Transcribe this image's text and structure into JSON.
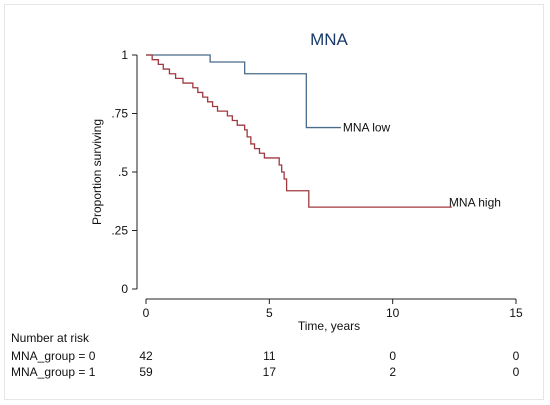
{
  "chart_data": {
    "type": "line",
    "subtype": "kaplan-meier",
    "title": "MNA",
    "xlabel": "Time, years",
    "ylabel": "Proportion surviving",
    "xlim": [
      0,
      15
    ],
    "ylim": [
      0,
      1
    ],
    "x_ticks": [
      0,
      5,
      10,
      15
    ],
    "x_tick_labels": [
      "0",
      "5",
      "10",
      "15"
    ],
    "y_ticks": [
      0,
      0.25,
      0.5,
      0.75,
      1
    ],
    "y_tick_labels": [
      "0",
      ".25",
      ".5",
      ".75",
      "1"
    ],
    "grid": false,
    "series": [
      {
        "name": "MNA low",
        "color": "#4a6b8a",
        "steps": [
          [
            0,
            1.0
          ],
          [
            2.6,
            0.97
          ],
          [
            4.0,
            0.92
          ],
          [
            6.5,
            0.69
          ]
        ],
        "end_x": 7.9
      },
      {
        "name": "MNA high",
        "color": "#a0393f",
        "steps": [
          [
            0,
            1.0
          ],
          [
            0.25,
            0.98
          ],
          [
            0.5,
            0.96
          ],
          [
            0.7,
            0.94
          ],
          [
            0.95,
            0.92
          ],
          [
            1.2,
            0.9
          ],
          [
            1.5,
            0.88
          ],
          [
            1.9,
            0.86
          ],
          [
            2.1,
            0.84
          ],
          [
            2.3,
            0.82
          ],
          [
            2.5,
            0.8
          ],
          [
            2.7,
            0.78
          ],
          [
            2.9,
            0.76
          ],
          [
            3.3,
            0.74
          ],
          [
            3.5,
            0.72
          ],
          [
            3.7,
            0.7
          ],
          [
            4.0,
            0.68
          ],
          [
            4.1,
            0.65
          ],
          [
            4.25,
            0.62
          ],
          [
            4.4,
            0.6
          ],
          [
            4.6,
            0.58
          ],
          [
            4.8,
            0.56
          ],
          [
            5.4,
            0.53
          ],
          [
            5.5,
            0.5
          ],
          [
            5.6,
            0.47
          ],
          [
            5.7,
            0.42
          ],
          [
            6.6,
            0.35
          ]
        ],
        "end_x": 12.4
      }
    ],
    "annotations": [
      {
        "text": "MNA low",
        "x": 7.9,
        "y": 0.69
      },
      {
        "text": "MNA high",
        "x": 12.2,
        "y": 0.37
      }
    ],
    "risk_table": {
      "title": "Number at risk",
      "times": [
        0,
        5,
        10,
        15
      ],
      "rows": [
        {
          "label": "MNA_group = 0",
          "values": [
            "42",
            "11",
            "0",
            "0"
          ]
        },
        {
          "label": "MNA_group = 1",
          "values": [
            "59",
            "17",
            "2",
            "0"
          ]
        }
      ]
    }
  }
}
